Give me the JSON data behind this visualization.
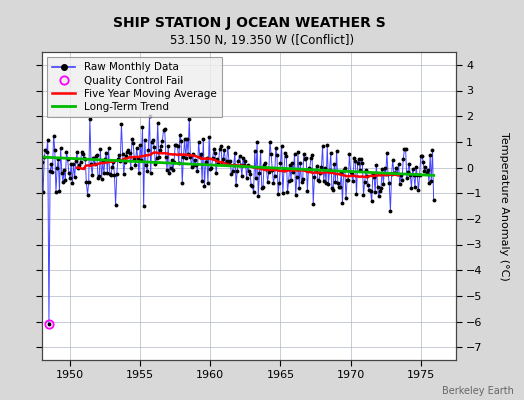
{
  "title": "SHIP STATION J OCEAN WEATHER S",
  "subtitle": "53.150 N, 19.350 W ([Conflict])",
  "ylabel": "Temperature Anomaly (°C)",
  "watermark": "Berkeley Earth",
  "xlim": [
    1948.0,
    1977.5
  ],
  "ylim": [
    -7.5,
    4.5
  ],
  "yticks": [
    -7,
    -6,
    -5,
    -4,
    -3,
    -2,
    -1,
    0,
    1,
    2,
    3,
    4
  ],
  "xticks": [
    1950,
    1955,
    1960,
    1965,
    1970,
    1975
  ],
  "bg_color": "#d8d8d8",
  "plot_bg_color": "#ffffff",
  "grid_color": "#b0b8c8",
  "raw_color": "#4444ff",
  "raw_marker_color": "#000000",
  "ma_color": "#ff0000",
  "trend_color": "#00bb00",
  "qc_color": "#ff00ff",
  "raw_seed": 17,
  "n_months": 336,
  "start_year": 1948.0,
  "figsize": [
    5.24,
    4.0
  ],
  "dpi": 100
}
